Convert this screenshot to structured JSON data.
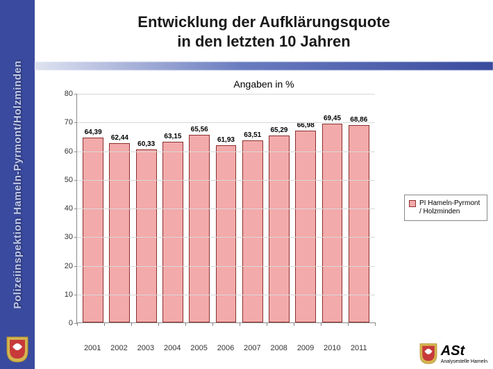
{
  "sidebar": {
    "text": "Polizeiinspektion Hameln-Pyrmont/Holzminden",
    "bg_color": "#3a4a9e",
    "text_color": "#c0c8e8"
  },
  "title": {
    "line1": "Entwicklung der Aufklärungsquote",
    "line2": "in den letzten 10 Jahren",
    "fontsize": 22
  },
  "subtitle": "Angaben in %",
  "chart": {
    "type": "bar",
    "categories": [
      "2001",
      "2002",
      "2003",
      "2004",
      "2005",
      "2006",
      "2007",
      "2008",
      "2009",
      "2010",
      "2011"
    ],
    "values": [
      64.39,
      62.44,
      60.33,
      63.15,
      65.56,
      61.93,
      63.51,
      65.29,
      66.98,
      69.45,
      68.86
    ],
    "value_labels": [
      "64,39",
      "62,44",
      "60,33",
      "63,15",
      "65,56",
      "61,93",
      "63,51",
      "65,29",
      "66,98",
      "69,45",
      "68,86"
    ],
    "bar_color": "#f3aaaa",
    "bar_border_color": "#8b2e2e",
    "ylim": [
      0,
      80
    ],
    "ytick_step": 10,
    "yticks": [
      0,
      10,
      20,
      30,
      40,
      50,
      60,
      70,
      80
    ],
    "grid_color": "#d8d8d8",
    "background_color": "#ffffff",
    "label_fontsize": 10,
    "axis_fontsize": 11,
    "bar_width": 0.78
  },
  "legend": {
    "label": "PI Hameln-Pyrmont / Holzminden",
    "swatch_color": "#f3aaaa"
  },
  "footer": {
    "logo_text": "ASt",
    "logo_sub": "Analysestelle Hameln"
  }
}
